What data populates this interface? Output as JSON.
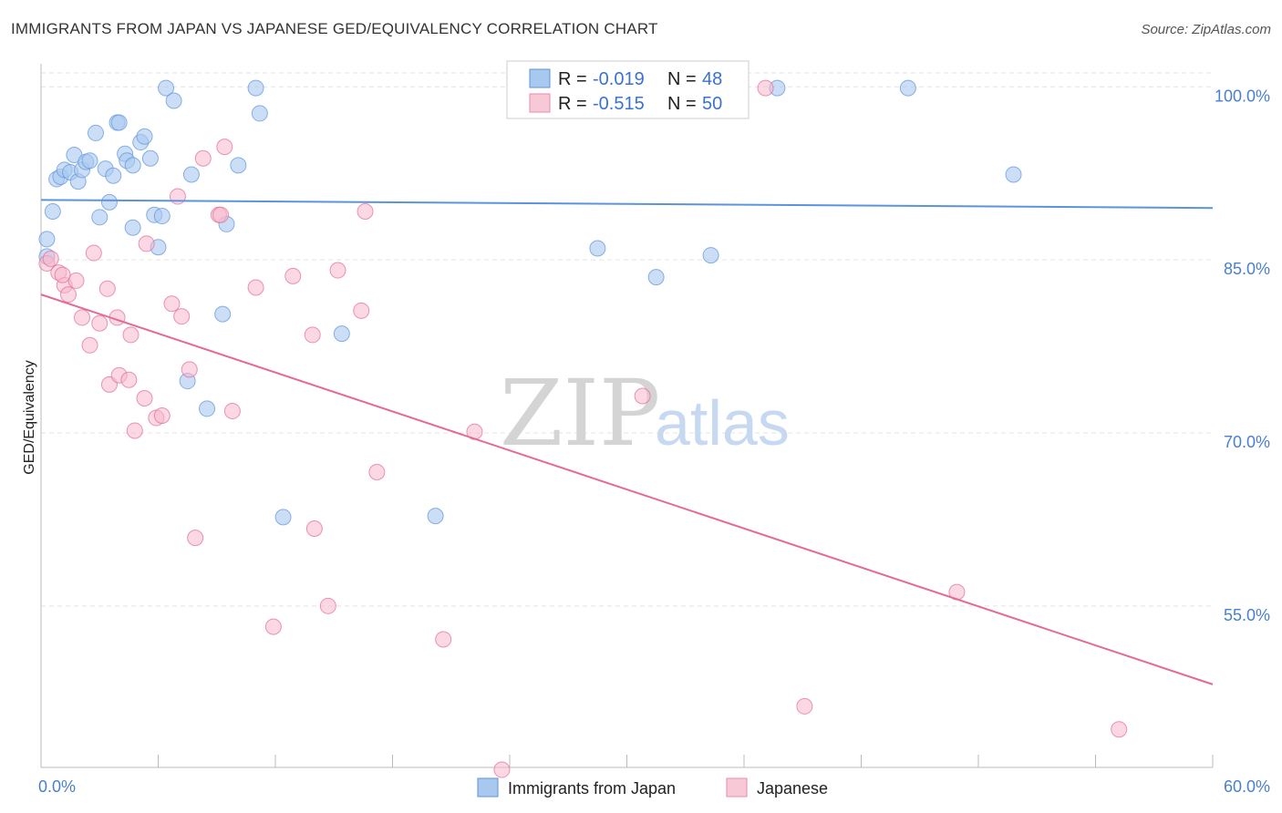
{
  "header": {
    "title": "IMMIGRANTS FROM JAPAN VS JAPANESE GED/EQUIVALENCY CORRELATION CHART",
    "source": "Source: ZipAtlas.com"
  },
  "watermark": {
    "zip": "ZIP",
    "atlas": "atlas"
  },
  "legend_top": {
    "rows": [
      {
        "r_label": "R = ",
        "r_value": "-0.019",
        "n_label": "N = ",
        "n_value": "48",
        "color": "#a8c8f0"
      },
      {
        "r_label": "R = ",
        "r_value": "-0.515",
        "n_label": "N = ",
        "n_value": "50",
        "color": "#f7b8cc"
      }
    ]
  },
  "legend_bottom": [
    {
      "label": "Immigrants from Japan",
      "color": "#a8c8f0"
    },
    {
      "label": "Japanese",
      "color": "#f7b8cc"
    }
  ],
  "chart_data": {
    "type": "scatter",
    "title": "IMMIGRANTS FROM JAPAN VS JAPANESE GED/EQUIVALENCY CORRELATION CHART",
    "xlabel": "",
    "ylabel": "GED/Equivalency",
    "xlim": [
      0,
      60
    ],
    "ylim": [
      41,
      102
    ],
    "x_tick_labels": [
      "0.0%",
      "60.0%"
    ],
    "y_ticks": [
      55,
      70,
      85,
      100
    ],
    "y_tick_labels": [
      "55.0%",
      "70.0%",
      "85.0%",
      "100.0%"
    ],
    "grid": true,
    "series": [
      {
        "name": "Immigrants from Japan",
        "color": "#5b93dc",
        "fill": "#a8c8f0",
        "trend": {
          "x": [
            0,
            60
          ],
          "y": [
            90.2,
            89.5
          ]
        },
        "points": [
          [
            0.3,
            86.8
          ],
          [
            0.3,
            85.3
          ],
          [
            0.6,
            89.2
          ],
          [
            0.8,
            92.0
          ],
          [
            1.0,
            92.2
          ],
          [
            1.2,
            92.8
          ],
          [
            1.5,
            92.6
          ],
          [
            1.7,
            94.1
          ],
          [
            1.9,
            91.8
          ],
          [
            2.1,
            92.8
          ],
          [
            2.3,
            93.5
          ],
          [
            2.5,
            93.6
          ],
          [
            2.8,
            96.0
          ],
          [
            3.0,
            88.7
          ],
          [
            3.3,
            92.9
          ],
          [
            3.5,
            90.0
          ],
          [
            3.7,
            92.3
          ],
          [
            3.9,
            96.9
          ],
          [
            4.0,
            96.9
          ],
          [
            4.3,
            94.2
          ],
          [
            4.4,
            93.6
          ],
          [
            4.7,
            93.2
          ],
          [
            4.7,
            87.8
          ],
          [
            5.1,
            95.2
          ],
          [
            5.3,
            95.7
          ],
          [
            5.6,
            93.8
          ],
          [
            5.8,
            88.9
          ],
          [
            6.0,
            86.1
          ],
          [
            6.2,
            88.8
          ],
          [
            6.4,
            99.9
          ],
          [
            6.8,
            98.8
          ],
          [
            7.5,
            74.5
          ],
          [
            7.7,
            92.4
          ],
          [
            8.5,
            72.1
          ],
          [
            9.3,
            80.3
          ],
          [
            9.5,
            88.1
          ],
          [
            10.1,
            93.2
          ],
          [
            11.0,
            99.9
          ],
          [
            11.2,
            97.7
          ],
          [
            12.4,
            62.7
          ],
          [
            15.4,
            78.6
          ],
          [
            20.2,
            62.8
          ],
          [
            28.5,
            86.0
          ],
          [
            31.5,
            83.5
          ],
          [
            34.3,
            85.4
          ],
          [
            37.7,
            99.9
          ],
          [
            44.4,
            99.9
          ],
          [
            49.8,
            92.4
          ]
        ]
      },
      {
        "name": "Japanese",
        "color": "#e36a95",
        "fill": "#f7b8cc",
        "trend": {
          "x": [
            0,
            60
          ],
          "y": [
            82.0,
            48.2
          ]
        },
        "points": [
          [
            0.3,
            84.7
          ],
          [
            0.9,
            83.9
          ],
          [
            1.2,
            82.8
          ],
          [
            1.4,
            82.0
          ],
          [
            1.8,
            83.2
          ],
          [
            2.1,
            80.0
          ],
          [
            2.5,
            77.6
          ],
          [
            2.7,
            85.6
          ],
          [
            3.0,
            79.5
          ],
          [
            3.4,
            82.5
          ],
          [
            3.5,
            74.2
          ],
          [
            3.9,
            80.0
          ],
          [
            4.0,
            75.0
          ],
          [
            4.5,
            74.6
          ],
          [
            4.6,
            78.5
          ],
          [
            4.8,
            70.2
          ],
          [
            5.3,
            73.0
          ],
          [
            5.4,
            86.4
          ],
          [
            5.9,
            71.3
          ],
          [
            6.2,
            71.5
          ],
          [
            6.7,
            81.2
          ],
          [
            7.0,
            90.5
          ],
          [
            7.2,
            80.1
          ],
          [
            7.6,
            75.5
          ],
          [
            7.9,
            60.9
          ],
          [
            8.3,
            93.8
          ],
          [
            9.1,
            88.9
          ],
          [
            9.2,
            88.9
          ],
          [
            9.4,
            94.8
          ],
          [
            9.8,
            71.9
          ],
          [
            11.0,
            82.6
          ],
          [
            11.9,
            53.2
          ],
          [
            12.9,
            83.6
          ],
          [
            13.9,
            78.5
          ],
          [
            14.0,
            61.7
          ],
          [
            14.7,
            55.0
          ],
          [
            15.2,
            84.1
          ],
          [
            16.4,
            80.6
          ],
          [
            16.6,
            89.2
          ],
          [
            17.2,
            66.6
          ],
          [
            20.6,
            52.1
          ],
          [
            22.2,
            70.1
          ],
          [
            23.6,
            40.8
          ],
          [
            30.8,
            73.2
          ],
          [
            37.1,
            99.9
          ],
          [
            39.1,
            46.3
          ],
          [
            46.9,
            56.2
          ],
          [
            55.2,
            44.3
          ],
          [
            0.5,
            85.1
          ],
          [
            1.1,
            83.7
          ]
        ]
      }
    ]
  }
}
